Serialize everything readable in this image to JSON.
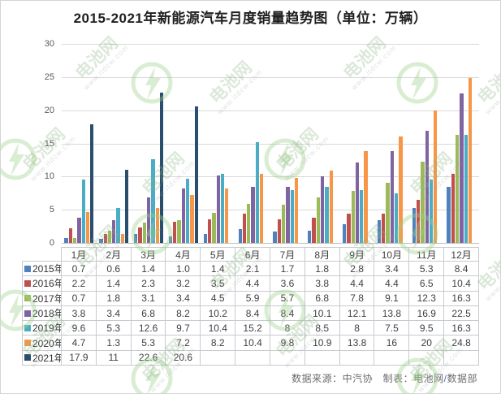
{
  "chart_data": {
    "type": "bar",
    "title": "2015-2021年新能源汽车月度销量趋势图（单位：万辆）",
    "categories": [
      "1月",
      "2月",
      "3月",
      "4月",
      "5月",
      "6月",
      "7月",
      "8月",
      "9月",
      "10月",
      "11月",
      "12月"
    ],
    "series": [
      {
        "name": "2015年",
        "color": "#4F81BD",
        "values": [
          0.7,
          0.6,
          1.4,
          1.0,
          1.4,
          2.1,
          1.7,
          1.8,
          2.8,
          3.4,
          5.3,
          8.4
        ],
        "labels": [
          "0.7",
          "0.6",
          "1.4",
          "1.0",
          "1.4",
          "2.1",
          "1.7",
          "1.8",
          "2.8",
          "3.4",
          "5.3",
          "8.4"
        ]
      },
      {
        "name": "2016年",
        "color": "#C0504D",
        "values": [
          2.2,
          1.4,
          2.3,
          3.2,
          3.5,
          4.4,
          3.6,
          3.8,
          4.4,
          4.4,
          6.5,
          10.4
        ],
        "labels": [
          "2.2",
          "1.4",
          "2.3",
          "3.2",
          "3.5",
          "4.4",
          "3.6",
          "3.8",
          "4.4",
          "4.4",
          "6.5",
          "10.4"
        ]
      },
      {
        "name": "2017年",
        "color": "#9BBB59",
        "values": [
          0.7,
          1.8,
          3.1,
          3.4,
          4.5,
          5.9,
          5.7,
          6.8,
          7.8,
          9.1,
          12.3,
          16.3
        ],
        "labels": [
          "0.7",
          "1.8",
          "3.1",
          "3.4",
          "4.5",
          "5.9",
          "5.7",
          "6.8",
          "7.8",
          "9.1",
          "12.3",
          "16.3"
        ]
      },
      {
        "name": "2018年",
        "color": "#8064A2",
        "values": [
          3.8,
          3.4,
          6.8,
          8.2,
          10.2,
          8.4,
          8.4,
          10.1,
          12.1,
          13.8,
          16.9,
          22.5
        ],
        "labels": [
          "3.8",
          "3.4",
          "6.8",
          "8.2",
          "10.2",
          "8.4",
          "8.4",
          "10.1",
          "12.1",
          "13.8",
          "16.9",
          "22.5"
        ]
      },
      {
        "name": "2019年",
        "color": "#4BACC6",
        "values": [
          9.6,
          5.3,
          12.6,
          9.7,
          10.4,
          15.2,
          8,
          8.5,
          8,
          7.5,
          9.5,
          16.3
        ],
        "labels": [
          "9.6",
          "5.3",
          "12.6",
          "9.7",
          "10.4",
          "15.2",
          "8",
          "8.5",
          "8",
          "7.5",
          "9.5",
          "16.3"
        ]
      },
      {
        "name": "2020年",
        "color": "#F79646",
        "values": [
          4.7,
          1.3,
          5.3,
          7.2,
          8.2,
          10.4,
          9.8,
          10.9,
          13.8,
          16,
          20,
          24.8
        ],
        "labels": [
          "4.7",
          "1.3",
          "5.3",
          "7.2",
          "8.2",
          "10.4",
          "9.8",
          "10.9",
          "13.8",
          "16",
          "20",
          "24.8"
        ]
      },
      {
        "name": "2021年",
        "color": "#2A4E6E",
        "values": [
          17.9,
          11,
          22.6,
          20.6,
          null,
          null,
          null,
          null,
          null,
          null,
          null,
          null
        ],
        "labels": [
          "17.9",
          "11",
          "22.6",
          "20.6",
          "",
          "",
          "",
          "",
          "",
          "",
          "",
          ""
        ]
      }
    ],
    "ylim": [
      0,
      30
    ],
    "yticks": [
      0,
      5,
      10,
      15,
      20,
      25,
      30
    ],
    "grid": true,
    "legend_position": "data-table-left"
  },
  "footer": {
    "text_main": "数据来源：中汽协　制表：电池网",
    "slash": "/",
    "dept": "数据部",
    "slash_color": "#4472C4"
  },
  "watermark": {
    "brand": "电池网",
    "url": "www.itdcw.com",
    "logo_color": "#9ED18B"
  }
}
